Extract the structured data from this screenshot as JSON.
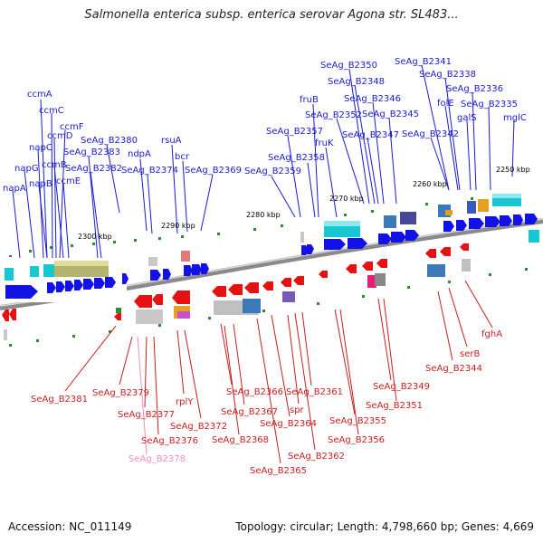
{
  "title": "Salmonella enterica subsp. enterica serovar Agona str. SL483...",
  "footer": {
    "accession": "Accession: NC_011149",
    "stats": "Topology: circular; Length: 4,798,660 bp; Genes: 4,669"
  },
  "ticks": [
    "2300 kbp",
    "2290 kbp",
    "2280 kbp",
    "2270 kbp",
    "2260 kbp",
    "2250 kbp"
  ],
  "top_labels": [
    "ccmA",
    "ccmC",
    "ccmF",
    "ccmD",
    "napC",
    "ccmB",
    "napG",
    "napB",
    "ccmE",
    "napA",
    "SeAg_B2380",
    "SeAg_B2383",
    "SeAg_B2382",
    "ndpA",
    "SeAg_B2374",
    "rsuA",
    "bcr",
    "SeAg_B2369",
    "fruB",
    "SeAg_B2357",
    "fruK",
    "SeAg_B2358",
    "SeAg_B2359",
    "SeAg_B2350",
    "SeAg_B2348",
    "SeAg_B2352",
    "SeAg_B2346",
    "SeAg_B2345",
    "SeAg_B2347",
    "SeAg_B2341",
    "SeAg_B2338",
    "SeAg_B2336",
    "folE",
    "SeAg_B2335",
    "galS",
    "SeAg_B2342",
    "mglC"
  ],
  "bottom_labels": [
    "SeAg_B2381",
    "SeAg_B2379",
    "SeAg_B2377",
    "rplY",
    "SeAg_B2372",
    "SeAg_B2376",
    "SeAg_B2378",
    "SeAg_B2366",
    "SeAg_B2367",
    "SeAg_B2368",
    "SeAg_B2365",
    "SeAg_B2364",
    "spr",
    "SeAg_B2362",
    "SeAg_B2361",
    "SeAg_B2355",
    "SeAg_B2356",
    "SeAg_B2349",
    "SeAg_B2351",
    "SeAg_B2344",
    "serB",
    "fghA"
  ],
  "colors": {
    "forward": "#1212e6",
    "reverse": "#e61212",
    "axis": "#888888",
    "cyan": "#18c8d0",
    "olive": "#b4b46e",
    "pseudo": "#f08cc4"
  }
}
